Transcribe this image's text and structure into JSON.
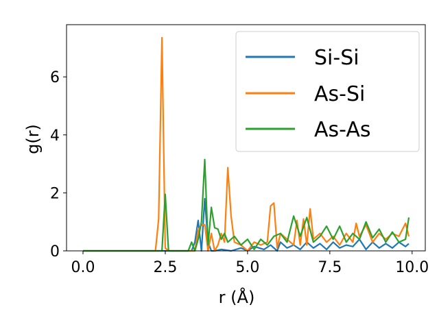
{
  "chart_data": {
    "type": "line",
    "title": "",
    "xlabel": "r (Å)",
    "ylabel": "g(r)",
    "xlim": [
      -0.5,
      10.4
    ],
    "ylim": [
      0,
      7.8
    ],
    "xticks": [
      0.0,
      2.5,
      5.0,
      7.5,
      10.0
    ],
    "xtick_labels": [
      "0.0",
      "2.5",
      "5.0",
      "7.5",
      "10.0"
    ],
    "yticks": [
      0,
      2,
      4,
      6
    ],
    "ytick_labels": [
      "0",
      "2",
      "4",
      "6"
    ],
    "grid": false,
    "legend_position": "top-right",
    "series": [
      {
        "name": "Si-Si",
        "color": "#1f77b4",
        "x": [
          0.0,
          2.2,
          2.5,
          3.3,
          3.4,
          3.5,
          3.6,
          3.7,
          3.8,
          3.9,
          4.0,
          4.2,
          4.5,
          4.8,
          5.0,
          5.2,
          5.5,
          5.7,
          5.9,
          6.0,
          6.2,
          6.4,
          6.6,
          6.8,
          7.0,
          7.2,
          7.4,
          7.6,
          7.8,
          8.0,
          8.2,
          8.4,
          8.6,
          8.8,
          9.0,
          9.2,
          9.4,
          9.6,
          9.8,
          9.9
        ],
        "y": [
          0.0,
          0.0,
          0.0,
          0.0,
          0.3,
          1.05,
          0.0,
          1.8,
          0.3,
          0.0,
          0.0,
          0.05,
          0.0,
          0.1,
          0.0,
          0.15,
          0.05,
          0.2,
          0.0,
          0.3,
          0.1,
          0.2,
          0.05,
          0.3,
          0.1,
          0.25,
          0.05,
          0.3,
          0.1,
          0.2,
          0.15,
          0.4,
          0.05,
          0.3,
          0.1,
          0.25,
          0.1,
          0.3,
          0.15,
          0.25
        ]
      },
      {
        "name": "As-Si",
        "color": "#ff7f0e",
        "x": [
          0.0,
          2.2,
          2.3,
          2.4,
          2.5,
          2.6,
          3.0,
          3.4,
          3.5,
          3.6,
          3.7,
          3.8,
          3.9,
          4.0,
          4.1,
          4.2,
          4.3,
          4.4,
          4.5,
          4.6,
          4.8,
          5.0,
          5.2,
          5.4,
          5.6,
          5.7,
          5.8,
          5.9,
          6.0,
          6.2,
          6.4,
          6.5,
          6.6,
          6.7,
          6.8,
          6.9,
          7.0,
          7.2,
          7.4,
          7.6,
          7.8,
          8.0,
          8.2,
          8.3,
          8.4,
          8.6,
          8.8,
          9.0,
          9.2,
          9.4,
          9.6,
          9.8,
          9.9
        ],
        "y": [
          0.0,
          0.0,
          1.1,
          7.35,
          0.1,
          0.0,
          0.0,
          0.0,
          0.7,
          0.9,
          0.9,
          0.0,
          0.6,
          0.0,
          0.2,
          0.6,
          0.3,
          2.87,
          1.2,
          0.3,
          0.2,
          0.0,
          0.3,
          0.2,
          0.3,
          1.55,
          1.65,
          0.1,
          0.6,
          0.4,
          0.2,
          1.05,
          0.2,
          1.1,
          0.2,
          1.45,
          0.4,
          0.6,
          0.3,
          0.5,
          0.2,
          0.6,
          0.3,
          0.95,
          0.5,
          0.9,
          0.3,
          0.6,
          0.4,
          0.6,
          0.5,
          0.95,
          0.5
        ]
      },
      {
        "name": "As-As",
        "color": "#2ca02c",
        "x": [
          0.0,
          2.4,
          2.5,
          2.6,
          2.7,
          3.0,
          3.2,
          3.3,
          3.4,
          3.5,
          3.6,
          3.7,
          3.8,
          3.9,
          4.0,
          4.1,
          4.2,
          4.3,
          4.4,
          4.6,
          4.8,
          5.0,
          5.2,
          5.4,
          5.6,
          5.8,
          6.0,
          6.2,
          6.4,
          6.6,
          6.8,
          7.0,
          7.2,
          7.4,
          7.6,
          7.8,
          8.0,
          8.2,
          8.4,
          8.6,
          8.8,
          9.0,
          9.2,
          9.4,
          9.6,
          9.8,
          9.9
        ],
        "y": [
          0.0,
          0.0,
          1.95,
          0.0,
          0.0,
          0.0,
          0.0,
          0.3,
          0.0,
          0.4,
          1.0,
          3.15,
          0.2,
          1.5,
          0.8,
          0.75,
          0.4,
          0.6,
          0.3,
          0.5,
          0.2,
          0.4,
          0.05,
          0.4,
          0.2,
          0.5,
          0.6,
          0.3,
          1.2,
          0.5,
          1.15,
          0.3,
          0.5,
          0.85,
          0.4,
          0.85,
          0.3,
          0.6,
          0.4,
          1.0,
          0.45,
          0.75,
          0.3,
          0.65,
          0.3,
          0.4,
          1.15
        ]
      }
    ]
  }
}
